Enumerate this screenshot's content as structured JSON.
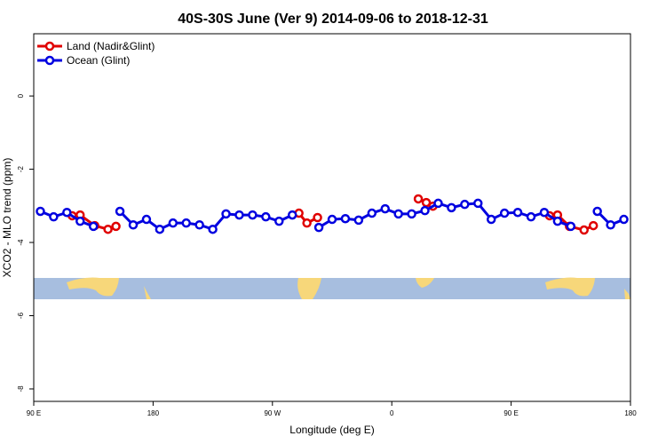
{
  "chart_data": {
    "type": "line",
    "title": "40S-30S June (Ver 9)   2014-09-06 to 2018-12-31",
    "xlabel": "Longitude (deg E)",
    "ylabel": "XCO2 - MLO trend (ppm)",
    "xlim": [
      90,
      540
    ],
    "ylim": [
      -8.34,
      1.7
    ],
    "xticks": [
      {
        "value": 90,
        "label": "90 E"
      },
      180,
      {
        "value": 270,
        "label": "90 W"
      },
      {
        "value": 360,
        "label": "0"
      },
      {
        "value": 450,
        "label": "90 E"
      },
      {
        "value": 540,
        "label": "180"
      }
    ],
    "yticks": [
      0,
      -2,
      -4,
      -6,
      -8
    ],
    "legend": "top-left",
    "series": [
      {
        "name": "Land (Nadir&Glint)",
        "color": "#e00000",
        "x": [
          119,
          125,
          136,
          146,
          152,
          null,
          290,
          296,
          304,
          null,
          380,
          386,
          391,
          null,
          479,
          485,
          494,
          505,
          512
        ],
        "values": [
          -3.27,
          -3.25,
          -3.54,
          -3.64,
          -3.56,
          null,
          -3.2,
          -3.47,
          -3.32,
          null,
          -2.81,
          -2.91,
          -3.01,
          null,
          -3.27,
          -3.25,
          -3.56,
          -3.66,
          -3.54
        ]
      },
      {
        "name": "Ocean (Glint)",
        "color": "#0000e0",
        "x": [
          95,
          105,
          115,
          125,
          135,
          null,
          155,
          165,
          175,
          185,
          195,
          205,
          215,
          225,
          235,
          245,
          255,
          265,
          275,
          285,
          null,
          305,
          315,
          325,
          335,
          345,
          355,
          365,
          375,
          385,
          395,
          405,
          415,
          425,
          435,
          445,
          455,
          465,
          475,
          485,
          495,
          null,
          515,
          525,
          535
        ],
        "values": [
          -3.15,
          -3.3,
          -3.18,
          -3.42,
          -3.56,
          null,
          -3.15,
          -3.52,
          -3.37,
          -3.64,
          -3.47,
          -3.47,
          -3.52,
          -3.64,
          -3.22,
          -3.25,
          -3.25,
          -3.3,
          -3.42,
          -3.25,
          null,
          -3.59,
          -3.37,
          -3.35,
          -3.39,
          -3.2,
          -3.08,
          -3.22,
          -3.22,
          -3.13,
          -2.93,
          -3.05,
          -2.96,
          -2.93,
          -3.37,
          -3.2,
          -3.18,
          -3.3,
          -3.18,
          -3.42,
          -3.56,
          null,
          -3.15,
          -3.52,
          -3.37
        ]
      }
    ]
  }
}
